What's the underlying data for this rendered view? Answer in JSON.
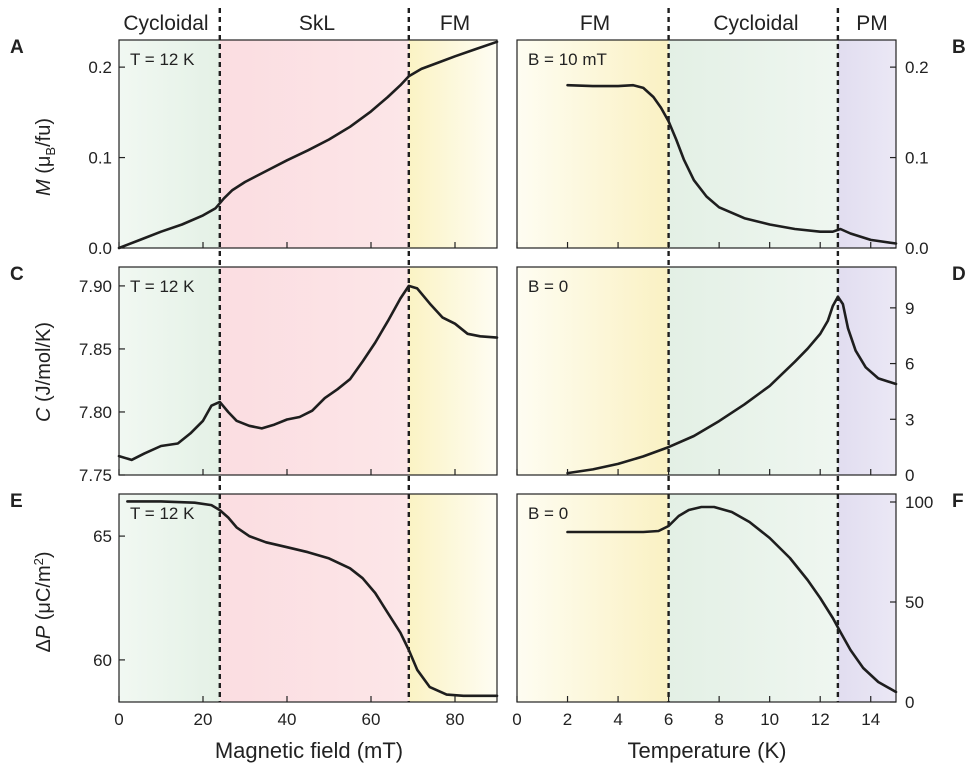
{
  "top_labels": {
    "left": [
      "Cycloidal",
      "SkL",
      "FM"
    ],
    "right": [
      "FM",
      "Cycloidal",
      "PM"
    ]
  },
  "colors": {
    "cycloidal": "#e7f2e8",
    "skl": "#fbdfe3",
    "fm": "#fcf6cf",
    "pm": "#e4e1f1",
    "curve": "#1e1e1e"
  },
  "chart_data": [
    {
      "id": "A",
      "type": "line",
      "panel_letter": "A",
      "annotation": "T = 12 K",
      "xlim": [
        0,
        90
      ],
      "ylim": [
        0,
        0.23
      ],
      "yticks": [
        0.0,
        0.1,
        0.2
      ],
      "ytick_labels": [
        "0.0",
        "0.1",
        "0.2"
      ],
      "xticks": [
        0,
        20,
        40,
        60,
        80
      ],
      "ylabel": "M (μB/fu)",
      "regions": [
        {
          "name": "Cycloidal",
          "from": 0,
          "to": 24
        },
        {
          "name": "SkL",
          "from": 24,
          "to": 69
        },
        {
          "name": "FM",
          "from": 69,
          "to": 90
        }
      ],
      "dashed_lines": [
        24,
        69
      ],
      "series": [
        {
          "x": [
            0,
            5,
            10,
            15,
            20,
            23,
            25,
            27,
            30,
            35,
            40,
            45,
            50,
            55,
            60,
            64,
            67,
            69,
            72,
            76,
            80,
            85,
            90
          ],
          "y": [
            0.0,
            0.009,
            0.018,
            0.026,
            0.036,
            0.044,
            0.055,
            0.064,
            0.073,
            0.085,
            0.097,
            0.108,
            0.12,
            0.134,
            0.151,
            0.167,
            0.18,
            0.19,
            0.198,
            0.205,
            0.212,
            0.22,
            0.228
          ]
        }
      ]
    },
    {
      "id": "B",
      "type": "line",
      "panel_letter": "B",
      "annotation": "B = 10 mT",
      "xlim": [
        0,
        15
      ],
      "ylim": [
        0,
        0.23
      ],
      "yticks": [
        0.0,
        0.1,
        0.2
      ],
      "ytick_labels": [
        "0.0",
        "0.1",
        "0.2"
      ],
      "xticks": [
        0,
        2,
        4,
        6,
        8,
        10,
        12,
        14
      ],
      "regions": [
        {
          "name": "FM",
          "from": 0,
          "to": 6
        },
        {
          "name": "Cycloidal",
          "from": 6,
          "to": 12.7
        },
        {
          "name": "PM",
          "from": 12.7,
          "to": 15
        }
      ],
      "dashed_lines": [
        6,
        12.7
      ],
      "series": [
        {
          "x": [
            2,
            3,
            4,
            4.6,
            5,
            5.4,
            5.7,
            6.0,
            6.3,
            6.6,
            7.0,
            7.5,
            8,
            9,
            10,
            11,
            12,
            12.5,
            12.8,
            13.2,
            14,
            15
          ],
          "y": [
            0.18,
            0.179,
            0.179,
            0.18,
            0.177,
            0.167,
            0.155,
            0.14,
            0.12,
            0.098,
            0.075,
            0.057,
            0.045,
            0.033,
            0.026,
            0.021,
            0.018,
            0.018,
            0.021,
            0.016,
            0.009,
            0.005
          ]
        }
      ]
    },
    {
      "id": "C",
      "type": "line",
      "panel_letter": "C",
      "annotation": "T = 12 K",
      "xlim": [
        0,
        90
      ],
      "ylim": [
        7.75,
        7.915
      ],
      "yticks": [
        7.75,
        7.8,
        7.85,
        7.9
      ],
      "ytick_labels": [
        "7.75",
        "7.80",
        "7.85",
        "7.90"
      ],
      "xticks": [
        0,
        20,
        40,
        60,
        80
      ],
      "ylabel": "C (J/mol/K)",
      "regions": [
        {
          "name": "Cycloidal",
          "from": 0,
          "to": 24
        },
        {
          "name": "SkL",
          "from": 24,
          "to": 69
        },
        {
          "name": "FM",
          "from": 69,
          "to": 90
        }
      ],
      "dashed_lines": [
        24,
        69
      ],
      "series": [
        {
          "x": [
            0,
            3,
            6,
            10,
            14,
            17,
            20,
            22,
            24,
            26,
            28,
            31,
            34,
            37,
            40,
            43,
            46,
            49,
            52,
            55,
            58,
            61,
            64,
            67,
            69,
            71,
            74,
            77,
            80,
            83,
            86,
            90
          ],
          "y": [
            7.765,
            7.762,
            7.767,
            7.773,
            7.775,
            7.783,
            7.793,
            7.805,
            7.808,
            7.8,
            7.793,
            7.789,
            7.787,
            7.79,
            7.794,
            7.796,
            7.801,
            7.811,
            7.818,
            7.826,
            7.84,
            7.855,
            7.872,
            7.89,
            7.9,
            7.898,
            7.886,
            7.875,
            7.87,
            7.862,
            7.86,
            7.859
          ]
        }
      ]
    },
    {
      "id": "D",
      "type": "line",
      "panel_letter": "D",
      "annotation": "B = 0",
      "xlim": [
        0,
        15
      ],
      "ylim": [
        0,
        11.2
      ],
      "yticks": [
        0,
        3,
        6,
        9
      ],
      "ytick_labels": [
        "0",
        "3",
        "6",
        "9"
      ],
      "xticks": [
        0,
        2,
        4,
        6,
        8,
        10,
        12,
        14
      ],
      "regions": [
        {
          "name": "FM",
          "from": 0,
          "to": 6
        },
        {
          "name": "Cycloidal",
          "from": 6,
          "to": 12.7
        },
        {
          "name": "PM",
          "from": 12.7,
          "to": 15
        }
      ],
      "dashed_lines": [
        6,
        12.7
      ],
      "series": [
        {
          "x": [
            2,
            3,
            4,
            5,
            6,
            7,
            8,
            9,
            10,
            11,
            11.5,
            12,
            12.3,
            12.5,
            12.7,
            12.9,
            13.1,
            13.4,
            13.8,
            14.3,
            15
          ],
          "y": [
            0.1,
            0.3,
            0.6,
            1.0,
            1.5,
            2.1,
            2.9,
            3.8,
            4.8,
            6.1,
            6.8,
            7.6,
            8.3,
            9.1,
            9.6,
            9.2,
            7.9,
            6.7,
            5.8,
            5.2,
            4.9
          ]
        }
      ]
    },
    {
      "id": "E",
      "type": "line",
      "panel_letter": "E",
      "annotation": "T = 12 K",
      "xlim": [
        0,
        90
      ],
      "ylim": [
        58.3,
        66.7
      ],
      "yticks": [
        60,
        65
      ],
      "ytick_labels": [
        "60",
        "65"
      ],
      "xticks": [
        0,
        20,
        40,
        60,
        80
      ],
      "xtick_labels": [
        "0",
        "20",
        "40",
        "60",
        "80"
      ],
      "ylabel": "ΔP (μC/m²)",
      "xlabel": "Magnetic field (mT)",
      "regions": [
        {
          "name": "Cycloidal",
          "from": 0,
          "to": 24
        },
        {
          "name": "SkL",
          "from": 24,
          "to": 69
        },
        {
          "name": "FM",
          "from": 69,
          "to": 90
        }
      ],
      "dashed_lines": [
        24,
        69
      ],
      "series": [
        {
          "x": [
            2,
            10,
            18,
            22,
            24,
            26,
            28,
            31,
            35,
            40,
            45,
            50,
            55,
            58,
            61,
            64,
            67,
            69,
            71,
            74,
            78,
            82,
            86,
            90
          ],
          "y": [
            66.4,
            66.4,
            66.35,
            66.25,
            66.05,
            65.75,
            65.35,
            65.0,
            64.75,
            64.55,
            64.35,
            64.1,
            63.7,
            63.3,
            62.7,
            61.9,
            61.1,
            60.4,
            59.6,
            58.9,
            58.6,
            58.55,
            58.55,
            58.55
          ]
        }
      ]
    },
    {
      "id": "F",
      "type": "line",
      "panel_letter": "F",
      "annotation": "B = 0",
      "xlim": [
        0,
        15
      ],
      "ylim": [
        0,
        104
      ],
      "yticks": [
        0,
        50,
        100
      ],
      "ytick_labels": [
        "0",
        "50",
        "100"
      ],
      "xticks": [
        0,
        2,
        4,
        6,
        8,
        10,
        12,
        14
      ],
      "xtick_labels": [
        "0",
        "2",
        "4",
        "6",
        "8",
        "10",
        "12",
        "14"
      ],
      "xlabel": "Temperature (K)",
      "regions": [
        {
          "name": "FM",
          "from": 0,
          "to": 6
        },
        {
          "name": "Cycloidal",
          "from": 6,
          "to": 12.7
        },
        {
          "name": "PM",
          "from": 12.7,
          "to": 15
        }
      ],
      "dashed_lines": [
        6,
        12.7
      ],
      "series": [
        {
          "x": [
            2,
            3,
            4,
            5,
            5.6,
            6.0,
            6.4,
            6.8,
            7.3,
            7.8,
            8.5,
            9.2,
            10,
            10.8,
            11.5,
            12,
            12.5,
            12.8,
            13.2,
            13.7,
            14.3,
            15
          ],
          "y": [
            85,
            85,
            85,
            85,
            85.5,
            88,
            93,
            96,
            97.5,
            97.5,
            95,
            90,
            82,
            72,
            61,
            52,
            42,
            35,
            26,
            17,
            10,
            5
          ]
        }
      ]
    }
  ]
}
